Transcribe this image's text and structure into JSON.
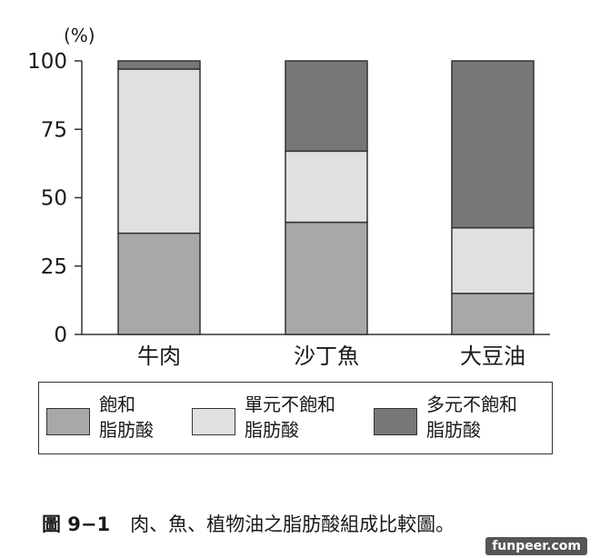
{
  "chart_data": {
    "type": "bar",
    "stacked": true,
    "unit": "(%)",
    "categories": [
      "牛肉",
      "沙丁魚",
      "大豆油"
    ],
    "yticks": [
      0,
      25,
      50,
      75,
      100
    ],
    "ylim": [
      0,
      100
    ],
    "series": [
      {
        "name": "飽和脂肪酸",
        "label_lines": [
          "飽和",
          "脂肪酸"
        ],
        "color": "#a8a8a8",
        "values": [
          37,
          41,
          15
        ]
      },
      {
        "name": "單元不飽和脂肪酸",
        "label_lines": [
          "單元不飽和",
          "脂肪酸"
        ],
        "color": "#e0e0e0",
        "values": [
          60,
          26,
          24
        ]
      },
      {
        "name": "多元不飽和脂肪酸",
        "label_lines": [
          "多元不飽和",
          "脂肪酸"
        ],
        "color": "#777777",
        "values": [
          3,
          33,
          61
        ]
      }
    ],
    "grid": false,
    "legend_placement": "bottom"
  },
  "caption": {
    "figure_number": "圖 9−1",
    "text": "肉、魚、植物油之脂肪酸組成比較圖。"
  },
  "watermark": "funpeer.com"
}
